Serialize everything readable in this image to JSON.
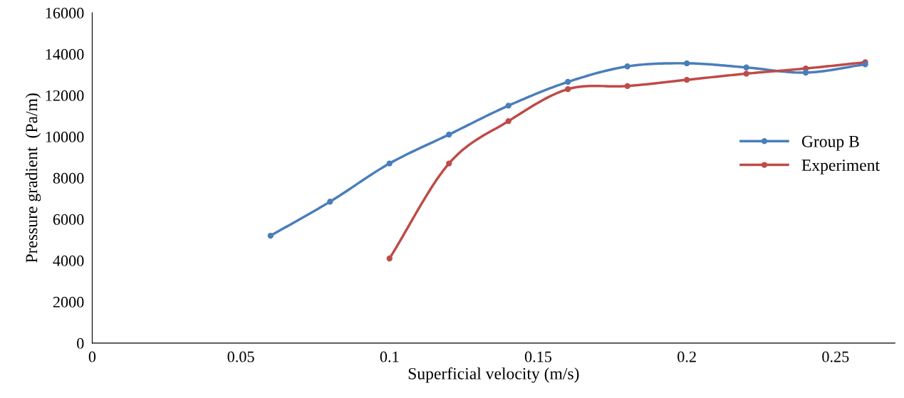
{
  "chart_data": {
    "type": "line",
    "xlabel": "Superficial velocity (m/s)",
    "ylabel": "Pressure gradient  (Pa/m)",
    "xlim": [
      0,
      0.27
    ],
    "xticks": [
      0,
      0.05,
      0.1,
      0.15,
      0.2,
      0.25
    ],
    "ylim": [
      0,
      16000
    ],
    "yticks": [
      0,
      2000,
      4000,
      6000,
      8000,
      10000,
      12000,
      14000,
      16000
    ],
    "grid": false,
    "legend": "right",
    "marker": "circle",
    "line_style": "solid",
    "series": [
      {
        "name": "Group B",
        "color": "#4a7ebb",
        "x": [
          0.06,
          0.08,
          0.1,
          0.12,
          0.14,
          0.16,
          0.18,
          0.2,
          0.22,
          0.24,
          0.26
        ],
        "values": [
          5200,
          6850,
          8700,
          10100,
          11500,
          12650,
          13400,
          13550,
          13350,
          13100,
          13500
        ]
      },
      {
        "name": "Experiment",
        "color": "#be4b48",
        "x": [
          0.1,
          0.12,
          0.14,
          0.16,
          0.18,
          0.2,
          0.22,
          0.24,
          0.26
        ],
        "values": [
          4100,
          8700,
          10750,
          12300,
          12450,
          12750,
          13050,
          13300,
          13600
        ]
      }
    ]
  }
}
